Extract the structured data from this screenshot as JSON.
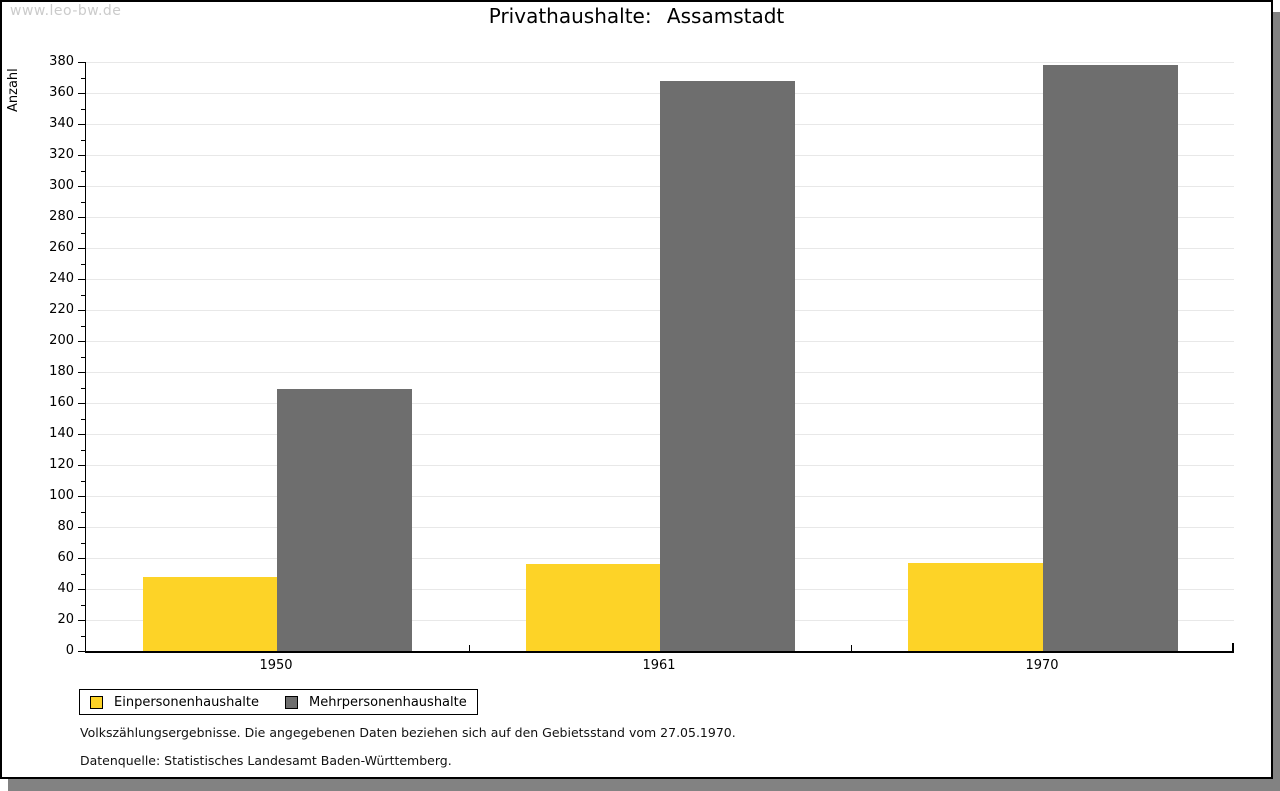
{
  "watermark": "www.leo-bw.de",
  "title": "Privathaushalte: Assamstadt",
  "ylabel": "Anzahl",
  "footnotes": [
    "Volkszählungsergebnisse. Die angegebenen Daten beziehen sich auf den Gebietsstand vom 27.05.1970.",
    "Datenquelle: Statistisches Landesamt Baden-Württemberg."
  ],
  "colors": {
    "series1": "#fdd327",
    "series2": "#6e6e6e",
    "grid": "#e8e8e8",
    "axis": "#000000",
    "frame_shadow": "#828282",
    "watermark": "#cbcbcb"
  },
  "chart_data": {
    "type": "bar",
    "categories": [
      "1950",
      "1961",
      "1970"
    ],
    "series": [
      {
        "name": "Einpersonenhaushalte",
        "color": "#fdd327",
        "values": [
          48,
          56,
          57
        ]
      },
      {
        "name": "Mehrpersonenhaushalte",
        "color": "#6e6e6e",
        "values": [
          169,
          368,
          378
        ]
      }
    ],
    "title": "Privathaushalte: Assamstadt",
    "xlabel": "",
    "ylabel": "Anzahl",
    "ylim": [
      0,
      380
    ],
    "ytick_step": 20,
    "ytick_minor_step": 10,
    "grid": true,
    "legend_position": "bottom-left"
  }
}
